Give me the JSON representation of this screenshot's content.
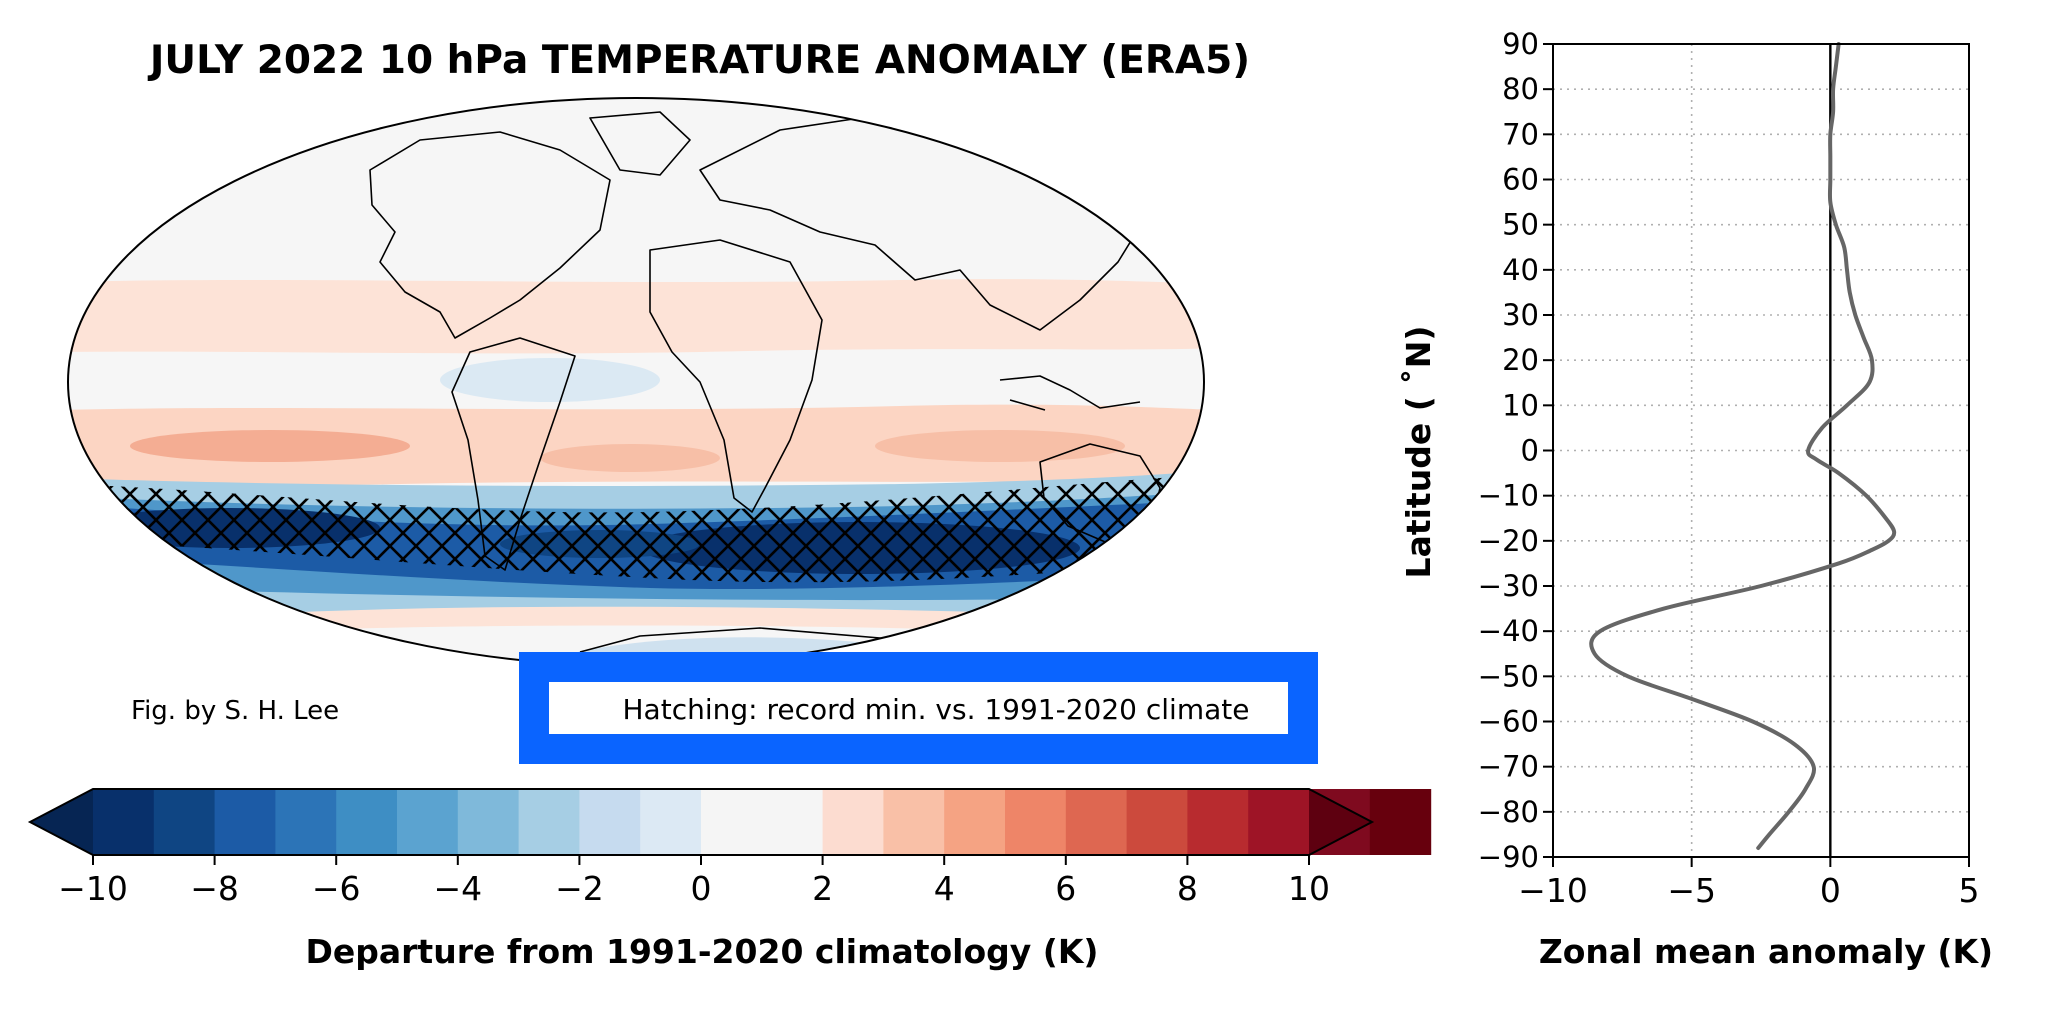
{
  "chart_data": [
    {
      "type": "heatmap",
      "title": "JULY 2022 10 hPa TEMPERATURE ANOMALY (ERA5)",
      "projection": "mollweide",
      "colorbar": {
        "label": "Departure from 1991-2020 climatology (K)",
        "range": [
          -10,
          10
        ],
        "step": 1,
        "extend": "both",
        "tick_values": [
          -10,
          -8,
          -6,
          -4,
          -2,
          0,
          2,
          4,
          6,
          8,
          10
        ],
        "tick_labels": [
          "−10",
          "−8",
          "−6",
          "−4",
          "−2",
          "0",
          "2",
          "4",
          "6",
          "8",
          "10"
        ],
        "colors": [
          "#08306b",
          "#0f4583",
          "#1c5ba6",
          "#2c74b7",
          "#3e8ec4",
          "#5ba3d0",
          "#7fb9da",
          "#a6cee4",
          "#c6dbef",
          "#dce9f4",
          "#f5f5f5",
          "#f5f5f5",
          "#fcdcd0",
          "#f9c0a7",
          "#f5a383",
          "#ee8568",
          "#de6751",
          "#cc4a3d",
          "#b82b2f",
          "#9e1426",
          "#7f0a1f",
          "#67000d"
        ],
        "under_color": "#062553",
        "over_color": "#5e0010"
      },
      "credit": "Fig. by S. H. Lee",
      "hatching_note": "Hatching: record min. vs. 1991-2020 climate",
      "highlight_color": "#0a64ff"
    },
    {
      "type": "line",
      "xlabel": "Zonal mean anomaly (K)",
      "ylabel": "Latitude ($^\\circ$N)",
      "ylabel_display": "Latitude ( ˚N)",
      "xlim": [
        -10,
        5
      ],
      "ylim": [
        -90,
        90
      ],
      "x_ticks": [
        -10,
        -5,
        0,
        5
      ],
      "x_tick_labels": [
        "−10",
        "−5",
        "0",
        "5"
      ],
      "y_ticks": [
        90,
        80,
        70,
        60,
        50,
        40,
        30,
        20,
        10,
        0,
        -10,
        -20,
        -30,
        -40,
        -50,
        -60,
        -70,
        -80,
        -90
      ],
      "y_tick_labels": [
        "90",
        "80",
        "70",
        "60",
        "50",
        "40",
        "30",
        "20",
        "10",
        "0",
        "−10",
        "−20",
        "−30",
        "−40",
        "−50",
        "−60",
        "−70",
        "−80",
        "−90"
      ],
      "grid": true,
      "line_color": "#666666",
      "series": [
        {
          "latitude": [
            90,
            85,
            80,
            75,
            70,
            65,
            60,
            55,
            50,
            45,
            40,
            35,
            30,
            25,
            20,
            15,
            10,
            5,
            0,
            -2,
            -5,
            -10,
            -15,
            -18,
            -20,
            -22,
            -25,
            -30,
            -35,
            -40,
            -45,
            -50,
            -55,
            -60,
            -65,
            -70,
            -75,
            -80,
            -85,
            -88
          ],
          "anomaly": [
            0.3,
            0.2,
            0.1,
            0.1,
            0.0,
            0.0,
            0.0,
            0.0,
            0.2,
            0.5,
            0.6,
            0.7,
            0.9,
            1.2,
            1.5,
            1.4,
            0.6,
            -0.3,
            -0.8,
            -0.5,
            0.3,
            1.3,
            2.0,
            2.3,
            2.1,
            1.5,
            0.3,
            -2.5,
            -6.0,
            -8.3,
            -8.5,
            -7.3,
            -5.0,
            -2.8,
            -1.3,
            -0.6,
            -0.9,
            -1.5,
            -2.2,
            -2.6
          ]
        }
      ]
    }
  ]
}
